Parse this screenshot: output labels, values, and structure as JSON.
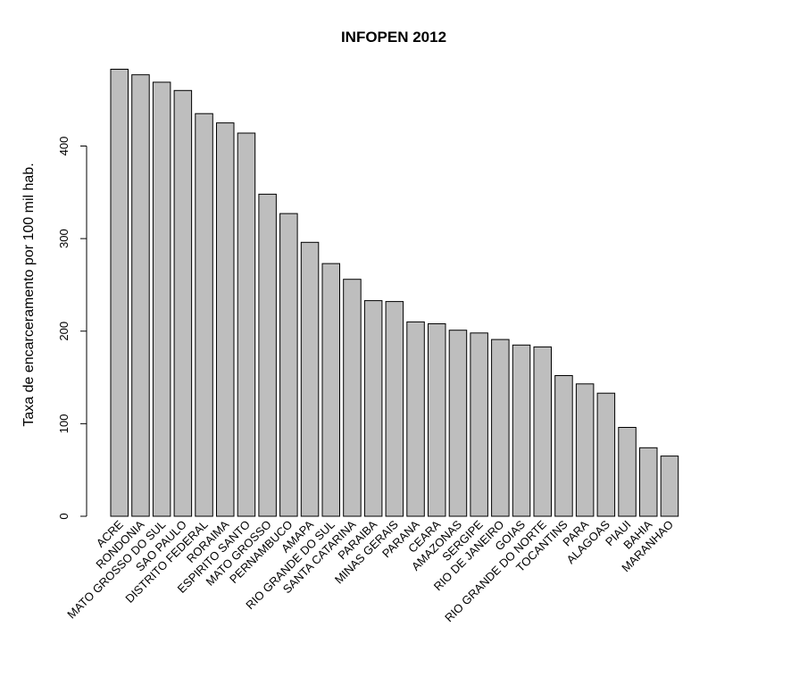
{
  "chart_data": {
    "type": "bar",
    "title": "INFOPEN 2012",
    "xlabel": "",
    "ylabel": "Taxa de encarceramento por 100 mil hab.",
    "ylim": [
      0,
      480
    ],
    "yticks": [
      0,
      100,
      200,
      300,
      400
    ],
    "categories": [
      "ACRE",
      "RONDONIA",
      "MATO GROSSO DO SUL",
      "SAO PAULO",
      "DISTRITO FEDERAL",
      "RORAIMA",
      "ESPIRITO SANTO",
      "MATO GROSSO",
      "PERNAMBUCO",
      "AMAPA",
      "RIO GRANDE DO SUL",
      "SANTA CATARINA",
      "PARAIBA",
      "MINAS GERAIS",
      "PARANA",
      "CEARA",
      "AMAZONAS",
      "SERGIPE",
      "RIO DE JANEIRO",
      "GOIAS",
      "RIO GRANDE DO NORTE",
      "TOCANTINS",
      "PARA",
      "ALAGOAS",
      "PIAUI",
      "BAHIA",
      "MARANHAO"
    ],
    "values": [
      483,
      477,
      469,
      460,
      435,
      425,
      414,
      348,
      327,
      296,
      273,
      256,
      233,
      232,
      210,
      208,
      201,
      198,
      191,
      185,
      183,
      152,
      143,
      133,
      96,
      74,
      65
    ],
    "grid": false,
    "bar_color": "#bebebe",
    "edge_color": "#000000"
  }
}
